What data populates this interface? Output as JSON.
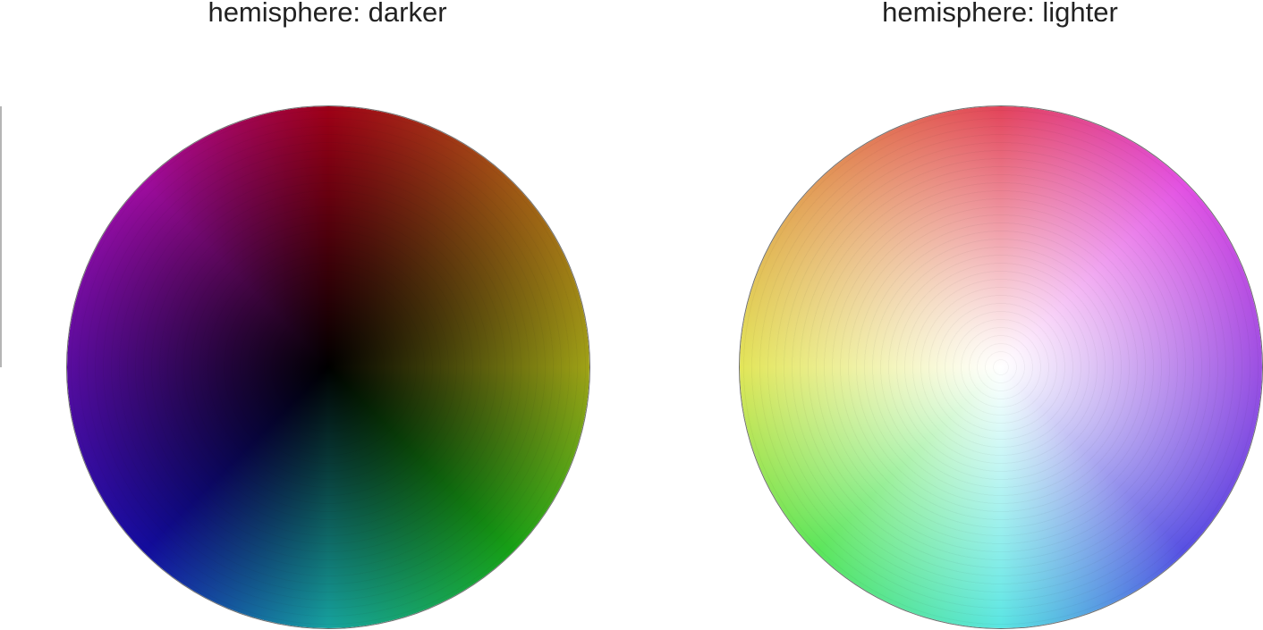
{
  "panels": [
    {
      "title": "hemisphere: darker",
      "center": "black",
      "center_color": "#000000"
    },
    {
      "title": "hemisphere: lighter",
      "center": "white",
      "center_color": "#ffffff"
    }
  ],
  "colors": {
    "red": "#d8001f",
    "orange": "#d8761c",
    "yellow": "#d8dc1e",
    "green": "#1fdc1e",
    "cyan": "#1edcd8",
    "blue": "#1a10d8",
    "violet": "#7810d8",
    "magenta": "#d810d8",
    "outline": "#6e6e6e"
  },
  "hue_order_darker": [
    "red",
    "orange",
    "yellow",
    "green",
    "cyan",
    "blue",
    "violet",
    "magenta"
  ],
  "hue_order_lighter": [
    "red",
    "magenta",
    "violet",
    "blue",
    "cyan",
    "green",
    "yellow",
    "orange"
  ]
}
